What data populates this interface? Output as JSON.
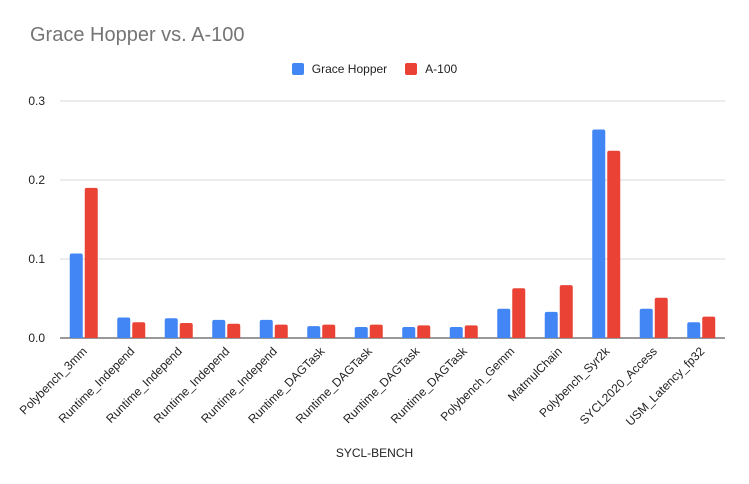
{
  "chart_data": {
    "type": "bar",
    "title": "Grace Hopper vs. A-100",
    "xlabel": "SYCL-BENCH",
    "ylabel": "",
    "ylim": [
      0,
      0.3
    ],
    "yticks": [
      "0.0",
      "0.1",
      "0.2",
      "0.3"
    ],
    "ytick_values": [
      0,
      0.1,
      0.2,
      0.3
    ],
    "grid": true,
    "legend_position": "top-center",
    "categories": [
      "Polybench_3mm",
      "Runtime_Independ",
      "Runtime_Independ",
      "Runtime_Independ",
      "Runtime_Independ",
      "Runtime_DAGTask",
      "Runtime_DAGTask",
      "Runtime_DAGTask",
      "Runtime_DAGTask",
      "Polybench_Gemm",
      "MatmulChain",
      "Polybench_Syr2k",
      "SYCL2020_Access",
      "USM_Latency_fp32"
    ],
    "series": [
      {
        "name": "Grace Hopper",
        "color": "#4285f4",
        "values": [
          0.107,
          0.026,
          0.025,
          0.023,
          0.023,
          0.015,
          0.014,
          0.014,
          0.014,
          0.037,
          0.033,
          0.264,
          0.037,
          0.02
        ]
      },
      {
        "name": "A-100",
        "color": "#ea4335",
        "values": [
          0.19,
          0.02,
          0.019,
          0.018,
          0.017,
          0.017,
          0.017,
          0.016,
          0.016,
          0.063,
          0.067,
          0.237,
          0.051,
          0.027
        ]
      }
    ]
  }
}
